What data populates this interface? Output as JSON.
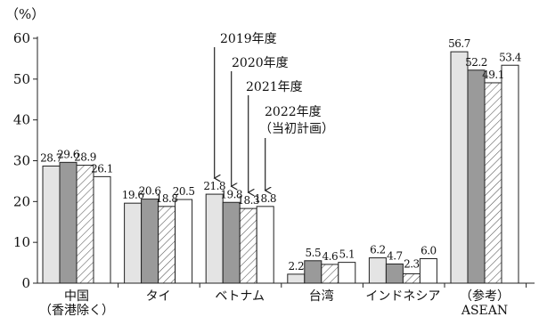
{
  "chart_data": {
    "type": "bar",
    "y_unit_label": "（%）",
    "ylim": [
      0,
      60
    ],
    "yticks": [
      0,
      10,
      20,
      30,
      40,
      50,
      60
    ],
    "grid": false,
    "categories": [
      [
        "中国",
        "（香港除く）"
      ],
      [
        "タイ"
      ],
      [
        "ベトナム"
      ],
      [
        "台湾"
      ],
      [
        "インドネシア"
      ],
      [
        "（参考）",
        "ASEAN"
      ]
    ],
    "series": [
      {
        "name": "2019年度",
        "fill": "#e4e4e4",
        "pattern": "none",
        "values": [
          28.7,
          19.6,
          21.8,
          2.2,
          6.2,
          56.7
        ],
        "labels": [
          "28.7",
          "19.6",
          "21.8",
          "2.2",
          "6.2",
          "56.7"
        ]
      },
      {
        "name": "2020年度",
        "fill": "#9a9a9a",
        "pattern": "none",
        "values": [
          29.6,
          20.6,
          19.8,
          5.5,
          4.7,
          52.2
        ],
        "labels": [
          "29.6",
          "20.6",
          "19.8",
          "5.5",
          "4.7",
          "52.2"
        ]
      },
      {
        "name": "2021年度",
        "fill": "#ffffff",
        "pattern": "hatch",
        "values": [
          28.9,
          18.8,
          18.3,
          4.6,
          2.3,
          49.1
        ],
        "labels": [
          "28.9",
          "18.8",
          "18.3",
          "4.6",
          "2.3",
          "49.1"
        ]
      },
      {
        "name": "2022年度",
        "name_line2": "（当初計画）",
        "fill": "#ffffff",
        "pattern": "none",
        "values": [
          26.1,
          20.5,
          18.8,
          5.1,
          6.0,
          53.4
        ],
        "labels": [
          "26.1",
          "20.5",
          "18.8",
          "5.1",
          "6.0",
          "53.4"
        ]
      }
    ],
    "legend_style": "callout labels with arrows pointing to the ベトナム bars"
  }
}
